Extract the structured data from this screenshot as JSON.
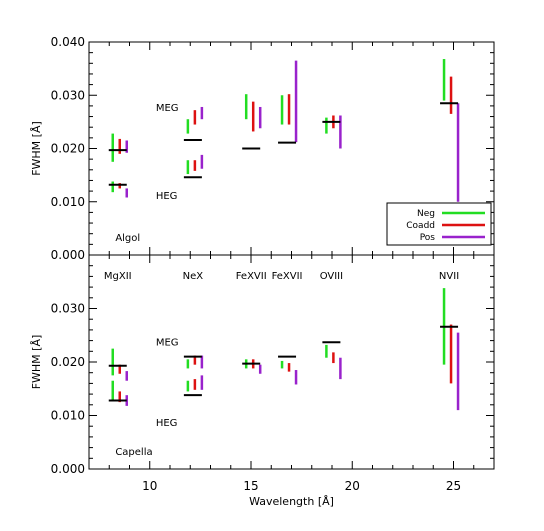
{
  "chart_data": {
    "type": "errorbar",
    "xlabel": "Wavelength [Å]",
    "xlim": [
      7,
      27
    ],
    "x_ticks": [
      10,
      15,
      20,
      25
    ],
    "x_tick_labels": [
      "10",
      "15",
      "20",
      "25"
    ],
    "legend": {
      "placement": "bottom-right of top panel",
      "entries": [
        {
          "label": "Neg",
          "color": "#22dd22"
        },
        {
          "label": "Coadd",
          "color": "#dd1111"
        },
        {
          "label": "Pos",
          "color": "#9922cc"
        }
      ]
    },
    "line_labels": [
      {
        "text": "MgXII",
        "x": 8.42
      },
      {
        "text": "NeX",
        "x": 12.13
      },
      {
        "text": "FeXVII",
        "x": 15.01
      },
      {
        "text": "FeXVII",
        "x": 16.78
      },
      {
        "text": "OVIII",
        "x": 18.97
      },
      {
        "text": "NVII",
        "x": 24.78
      }
    ],
    "panels": [
      {
        "name": "Algol",
        "label": "Algol",
        "ylabel": "FWHM [Å]",
        "ylim": [
          0,
          0.04
        ],
        "y_ticks": [
          0.0,
          0.01,
          0.02,
          0.03,
          0.04
        ],
        "y_tick_labels": [
          "0.000",
          "0.010",
          "0.020",
          "0.030",
          "0.040"
        ],
        "annotations": [
          {
            "text": "MEG",
            "x": 10.3,
            "y": 0.0278
          },
          {
            "text": "HEG",
            "x": 10.3,
            "y": 0.0113
          }
        ],
        "lines": [
          {
            "x": 8.42,
            "ref": 0.0197,
            "neg": [
              0.0175,
              0.0228
            ],
            "coadd": [
              0.019,
              0.0218
            ],
            "pos": [
              0.0192,
              0.0215
            ]
          },
          {
            "x": 8.42,
            "ref": 0.0132,
            "neg": [
              0.0118,
              0.0138
            ],
            "coadd": [
              0.0125,
              0.0135
            ],
            "pos": [
              0.0108,
              0.0125
            ]
          },
          {
            "x": 12.13,
            "ref": 0.0216,
            "neg": [
              0.0228,
              0.0255
            ],
            "coadd": [
              0.0245,
              0.0272
            ],
            "pos": [
              0.0255,
              0.0278
            ]
          },
          {
            "x": 12.13,
            "ref": 0.0146,
            "neg": [
              0.0152,
              0.0178
            ],
            "coadd": [
              0.0158,
              0.0178
            ],
            "pos": [
              0.0162,
              0.0188
            ]
          },
          {
            "x": 15.01,
            "ref": 0.02,
            "neg": [
              0.0255,
              0.0302
            ],
            "coadd": [
              0.0232,
              0.0288
            ],
            "pos": [
              0.0238,
              0.0278
            ]
          },
          {
            "x": 16.78,
            "ref": 0.0211,
            "neg": [
              0.0245,
              0.03
            ],
            "coadd": [
              0.0245,
              0.0302
            ],
            "pos": [
              0.0212,
              0.0365
            ]
          },
          {
            "x": 18.97,
            "ref": 0.025,
            "neg": [
              0.0228,
              0.0258
            ],
            "coadd": [
              0.0238,
              0.0262
            ],
            "pos": [
              0.02,
              0.0262
            ]
          },
          {
            "x": 24.78,
            "ref": 0.0285,
            "neg": [
              0.029,
              0.0368
            ],
            "coadd": [
              0.0265,
              0.0335
            ],
            "pos": [
              0.01,
              0.0285
            ]
          }
        ]
      },
      {
        "name": "Capella",
        "label": "Capella",
        "ylabel": "FWHM [Å]",
        "ylim": [
          0,
          0.04
        ],
        "y_ticks": [
          0.0,
          0.01,
          0.02,
          0.03
        ],
        "y_tick_labels": [
          "0.000",
          "0.010",
          "0.020",
          "0.030"
        ],
        "annotations": [
          {
            "text": "MEG",
            "x": 10.3,
            "y": 0.0238
          },
          {
            "text": "HEG",
            "x": 10.3,
            "y": 0.0088
          }
        ],
        "lines": [
          {
            "x": 8.42,
            "ref": 0.0193,
            "neg": [
              0.0175,
              0.0225
            ],
            "coadd": [
              0.0178,
              0.0195
            ],
            "pos": [
              0.0165,
              0.0183
            ]
          },
          {
            "x": 8.42,
            "ref": 0.0128,
            "neg": [
              0.0128,
              0.0165
            ],
            "coadd": [
              0.0125,
              0.0145
            ],
            "pos": [
              0.0118,
              0.0138
            ]
          },
          {
            "x": 12.13,
            "ref": 0.021,
            "neg": [
              0.0188,
              0.0205
            ],
            "coadd": [
              0.0195,
              0.0212
            ],
            "pos": [
              0.0188,
              0.0212
            ]
          },
          {
            "x": 12.13,
            "ref": 0.0138,
            "neg": [
              0.0145,
              0.0165
            ],
            "coadd": [
              0.0148,
              0.0168
            ],
            "pos": [
              0.0148,
              0.0175
            ]
          },
          {
            "x": 15.01,
            "ref": 0.0197,
            "neg": [
              0.0188,
              0.0205
            ],
            "coadd": [
              0.0188,
              0.0205
            ],
            "pos": [
              0.0178,
              0.0195
            ]
          },
          {
            "x": 16.78,
            "ref": 0.021,
            "neg": [
              0.0188,
              0.0202
            ],
            "coadd": [
              0.0182,
              0.0198
            ],
            "pos": [
              0.0158,
              0.0185
            ]
          },
          {
            "x": 18.97,
            "ref": 0.0237,
            "neg": [
              0.0208,
              0.0232
            ],
            "coadd": [
              0.0198,
              0.0218
            ],
            "pos": [
              0.0168,
              0.0208
            ]
          },
          {
            "x": 24.78,
            "ref": 0.0266,
            "neg": [
              0.0195,
              0.0338
            ],
            "coadd": [
              0.016,
              0.027
            ],
            "pos": [
              0.011,
              0.0255
            ]
          }
        ]
      }
    ]
  }
}
